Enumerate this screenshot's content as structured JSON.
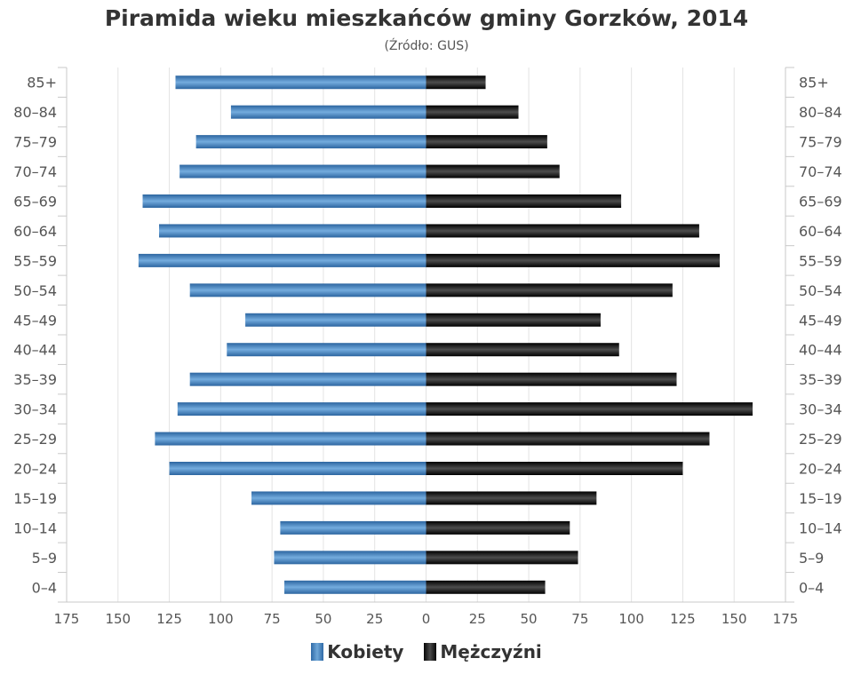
{
  "chart_data": {
    "type": "bar",
    "orientation": "horizontal",
    "layout": "population-pyramid",
    "title": "Piramida wieku mieszkańców gminy Gorzków, 2014",
    "subtitle": "(Źródło: GUS)",
    "categories": [
      "0–4",
      "5–9",
      "10–14",
      "15–19",
      "20–24",
      "25–29",
      "30–34",
      "35–39",
      "40–44",
      "45–49",
      "50–54",
      "55–59",
      "60–64",
      "65–69",
      "70–74",
      "75–79",
      "80–84",
      "85+"
    ],
    "series": [
      {
        "name": "Kobiety",
        "color": "#3a78b8",
        "side": "left",
        "values": [
          69,
          74,
          71,
          85,
          125,
          132,
          121,
          115,
          97,
          88,
          115,
          140,
          130,
          138,
          120,
          112,
          95,
          122
        ]
      },
      {
        "name": "Mężczyźni",
        "color": "#111111",
        "side": "right",
        "values": [
          58,
          74,
          70,
          83,
          125,
          138,
          159,
          122,
          94,
          85,
          120,
          143,
          133,
          95,
          65,
          59,
          45,
          29
        ]
      }
    ],
    "xlim": [
      -175,
      175
    ],
    "xticks": [
      -175,
      -150,
      -125,
      -100,
      -75,
      -50,
      -25,
      0,
      25,
      50,
      75,
      100,
      125,
      150,
      175
    ],
    "xtick_labels": [
      "175",
      "150",
      "125",
      "100",
      "75",
      "50",
      "25",
      "0",
      "25",
      "50",
      "75",
      "100",
      "125",
      "150",
      "175"
    ],
    "grid": true,
    "legend": "bottom"
  }
}
